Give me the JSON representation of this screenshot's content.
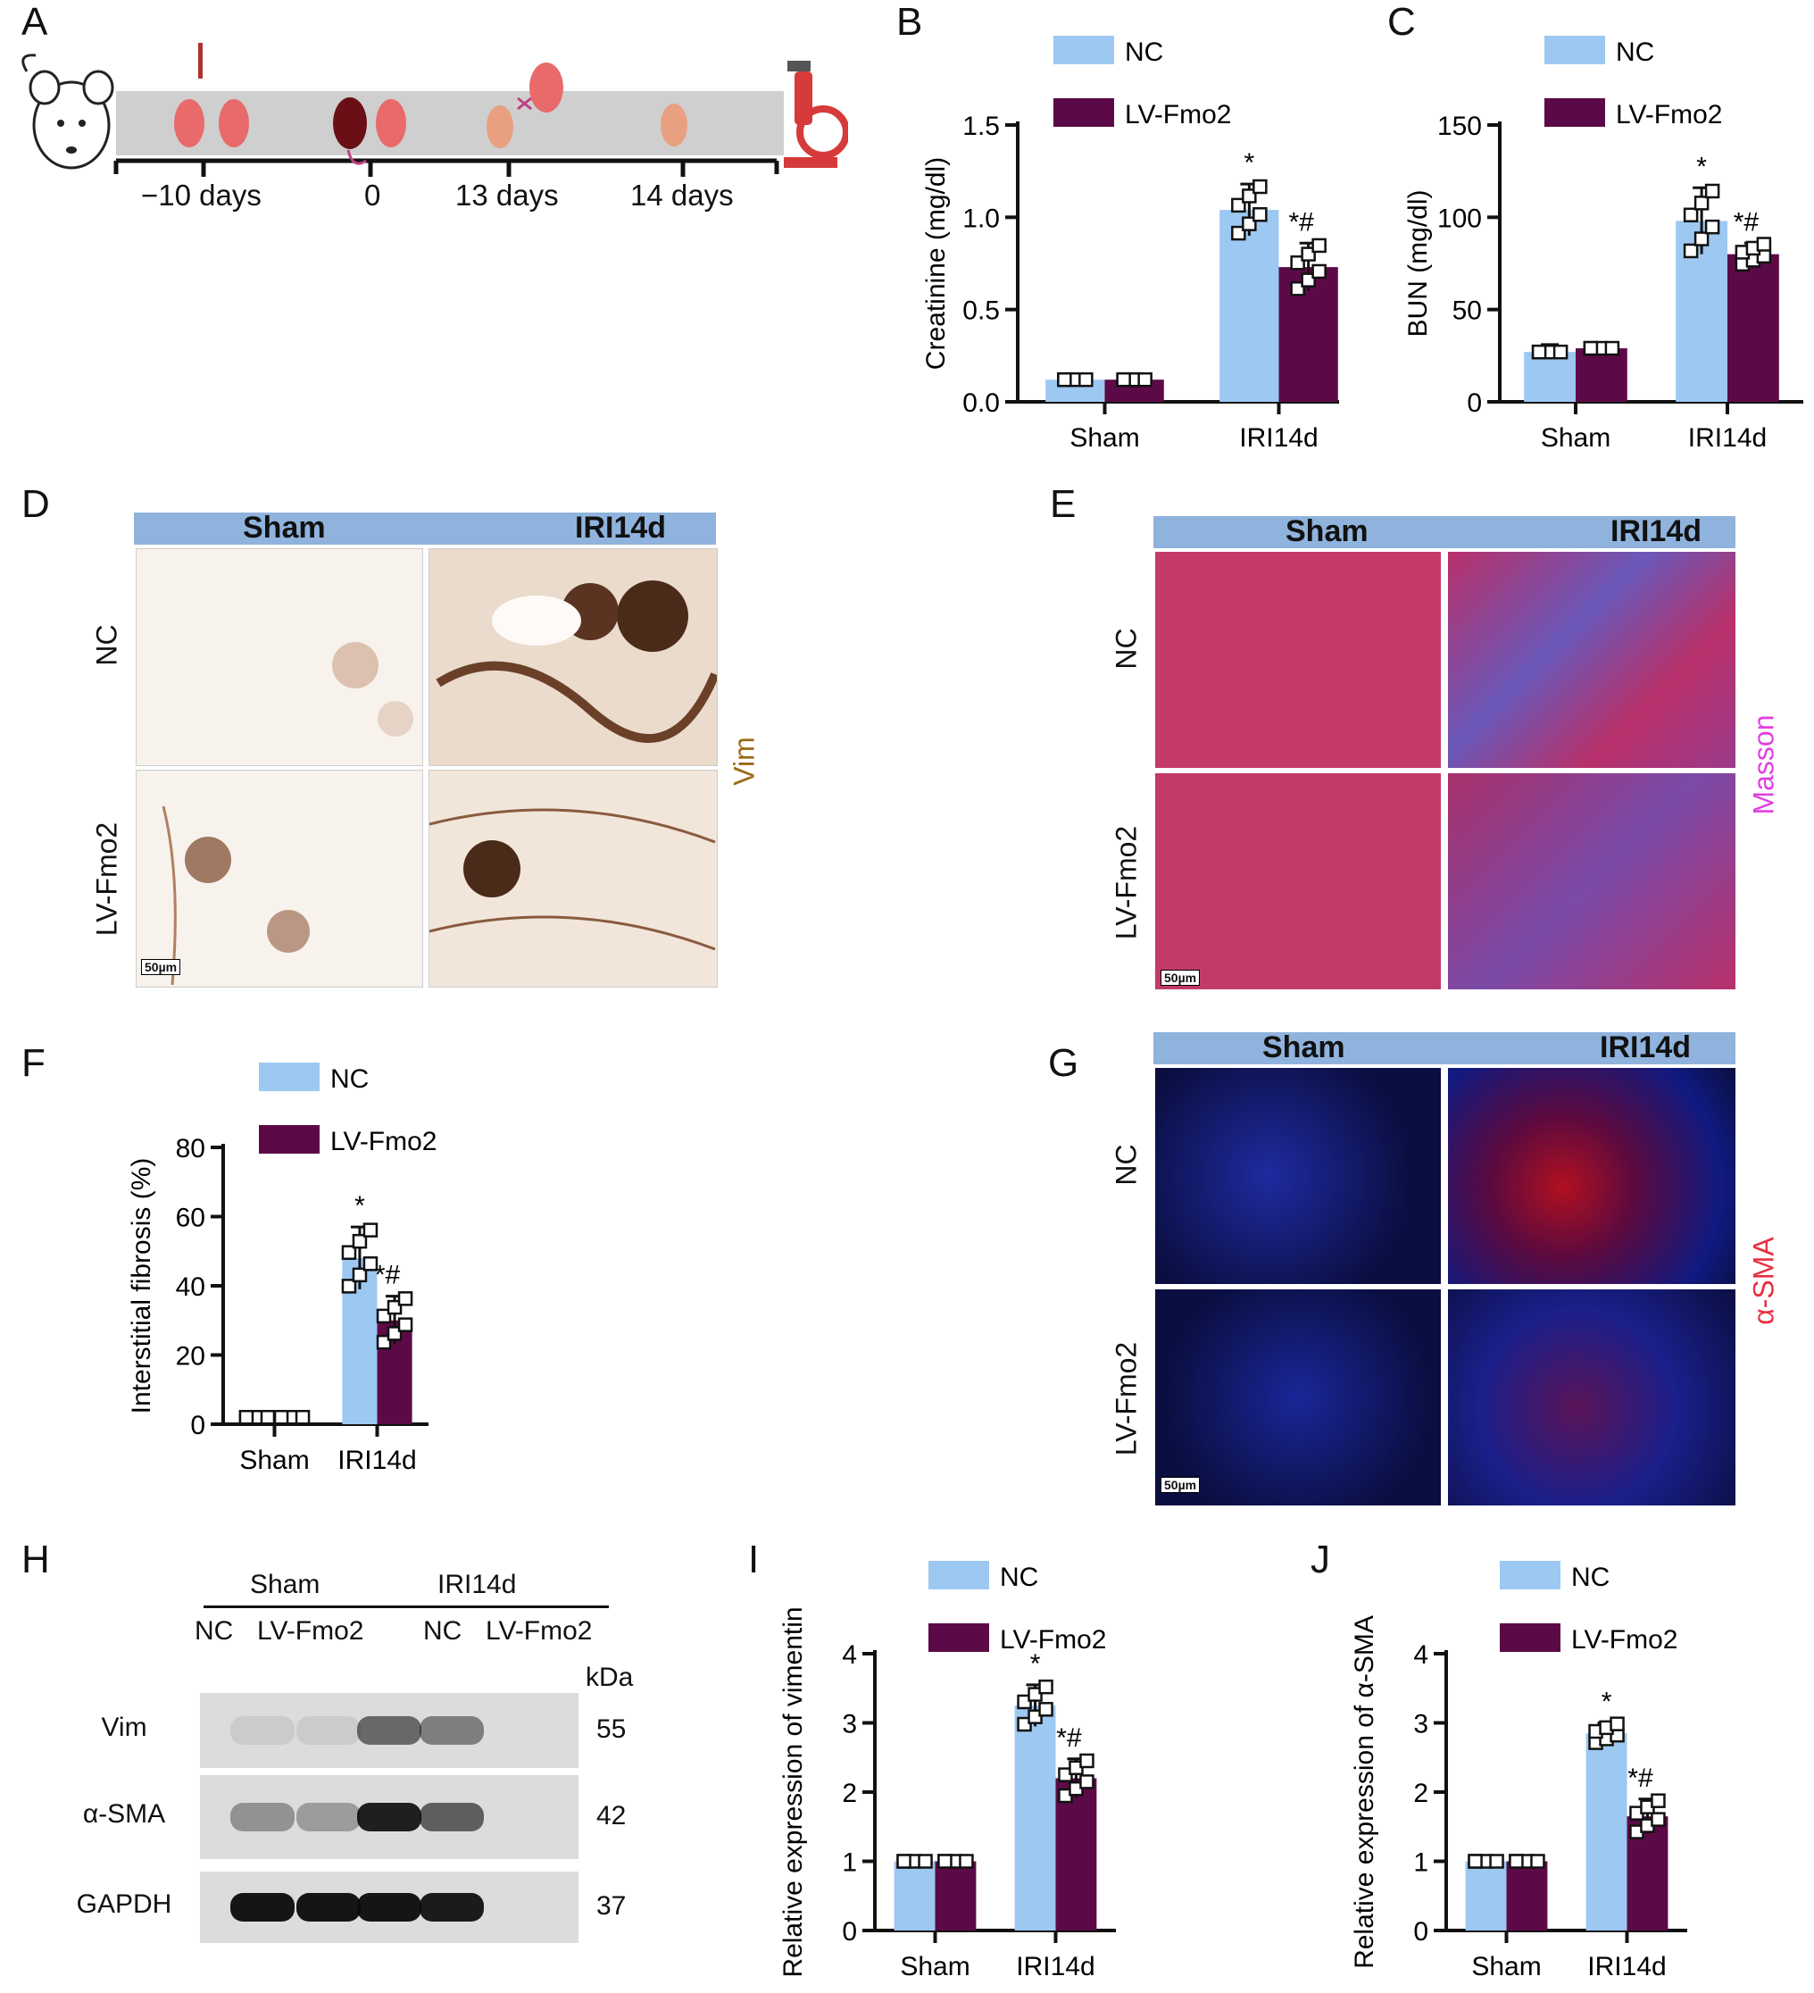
{
  "panel_letters": {
    "A": "A",
    "B": "B",
    "C": "C",
    "D": "D",
    "E": "E",
    "F": "F",
    "G": "G",
    "H": "H",
    "I": "I",
    "J": "J"
  },
  "colors": {
    "nc": "#9cc8f2",
    "lv": "#5c0a47",
    "header_bar": "#8fb3dd",
    "kidney": "#e86a6a",
    "vim_text": "#9a6a14",
    "masson_text": "#e040e0",
    "sma_text": "#e83040"
  },
  "timeline": {
    "labels": [
      "−10 days",
      "0",
      "13 days",
      "14 days"
    ],
    "icons": [
      "mouse-icon",
      "kidney-pair-icon",
      "injured-kidney-icon",
      "nephrectomy-icon",
      "single-kidney-icon",
      "microscope-icon"
    ]
  },
  "legend": {
    "nc": "NC",
    "lv": "LV-Fmo2"
  },
  "stars": {
    "sig": "*",
    "sig2": "#"
  },
  "histology": {
    "D": {
      "col1": "Sham",
      "col2": "IRI14d",
      "row1": "NC",
      "row2": "LV-Fmo2",
      "stain": "Vim",
      "scale": "50µm"
    },
    "E": {
      "col1": "Sham",
      "col2": "IRI14d",
      "row1": "NC",
      "row2": "LV-Fmo2",
      "stain": "Masson",
      "scale": "50µm"
    },
    "G": {
      "col1": "Sham",
      "col2": "IRI14d",
      "row1": "NC",
      "row2": "LV-Fmo2",
      "stain": "α-SMA",
      "scale": "50µm"
    }
  },
  "western": {
    "groups": [
      "Sham",
      "IRI14d"
    ],
    "lanes": [
      "NC",
      "LV-Fmo2",
      "NC",
      "LV-Fmo2"
    ],
    "kda_label": "kDa",
    "bands": [
      {
        "name": "Vim",
        "kda": "55",
        "intensity": [
          0.08,
          0.08,
          0.55,
          0.45
        ]
      },
      {
        "name": "α-SMA",
        "kda": "42",
        "intensity": [
          0.35,
          0.3,
          0.9,
          0.6
        ]
      },
      {
        "name": "GAPDH",
        "kda": "37",
        "intensity": [
          0.95,
          0.95,
          0.95,
          0.92
        ]
      }
    ]
  },
  "chart_data": [
    {
      "panel": "B",
      "type": "bar",
      "categories": [
        "Sham",
        "IRI14d"
      ],
      "ylabel": "Creatinine (mg/dl)",
      "ylim": [
        0,
        1.5
      ],
      "yticks": [
        "0.0",
        "0.5",
        "1.0",
        "1.5"
      ],
      "series": [
        {
          "name": "NC",
          "values": [
            0.12,
            1.04
          ],
          "errors": [
            0.03,
            0.14
          ]
        },
        {
          "name": "LV-Fmo2",
          "values": [
            0.12,
            0.73
          ],
          "errors": [
            0.02,
            0.13
          ]
        }
      ],
      "annotations": [
        {
          "category": "IRI14d",
          "series": "NC",
          "text": "*"
        },
        {
          "category": "IRI14d",
          "series": "LV-Fmo2",
          "text": "*#"
        }
      ]
    },
    {
      "panel": "C",
      "type": "bar",
      "categories": [
        "Sham",
        "IRI14d"
      ],
      "ylabel": "BUN (mg/dl)",
      "ylim": [
        0,
        150
      ],
      "yticks": [
        "0",
        "50",
        "100",
        "150"
      ],
      "series": [
        {
          "name": "NC",
          "values": [
            27,
            98
          ],
          "errors": [
            4,
            18
          ]
        },
        {
          "name": "LV-Fmo2",
          "values": [
            29,
            80
          ],
          "errors": [
            3,
            6
          ]
        }
      ],
      "annotations": [
        {
          "category": "IRI14d",
          "series": "NC",
          "text": "*"
        },
        {
          "category": "IRI14d",
          "series": "LV-Fmo2",
          "text": "*#"
        }
      ]
    },
    {
      "panel": "F",
      "type": "bar",
      "categories": [
        "Sham",
        "IRI14d"
      ],
      "ylabel": "Interstitial fibrosis (%)",
      "ylim": [
        0,
        80
      ],
      "yticks": [
        "0",
        "20",
        "40",
        "60",
        "80"
      ],
      "series": [
        {
          "name": "NC",
          "values": [
            2,
            48
          ],
          "errors": [
            1,
            9
          ]
        },
        {
          "name": "LV-Fmo2",
          "values": [
            2,
            30
          ],
          "errors": [
            1,
            7
          ]
        }
      ],
      "annotations": [
        {
          "category": "IRI14d",
          "series": "NC",
          "text": "*"
        },
        {
          "category": "IRI14d",
          "series": "LV-Fmo2",
          "text": "*#"
        }
      ]
    },
    {
      "panel": "I",
      "type": "bar",
      "categories": [
        "Sham",
        "IRI14d"
      ],
      "ylabel": "Relative expression of vimentin",
      "ylim": [
        0,
        4
      ],
      "yticks": [
        "0",
        "1",
        "2",
        "3",
        "4"
      ],
      "series": [
        {
          "name": "NC",
          "values": [
            1.0,
            3.25
          ],
          "errors": [
            0.03,
            0.3
          ]
        },
        {
          "name": "LV-Fmo2",
          "values": [
            1.0,
            2.2
          ],
          "errors": [
            0.03,
            0.28
          ]
        }
      ],
      "annotations": [
        {
          "category": "IRI14d",
          "series": "NC",
          "text": "*"
        },
        {
          "category": "IRI14d",
          "series": "LV-Fmo2",
          "text": "*#"
        }
      ]
    },
    {
      "panel": "J",
      "type": "bar",
      "categories": [
        "Sham",
        "IRI14d"
      ],
      "ylabel": "Relative expression of α-SMA",
      "ylim": [
        0,
        4
      ],
      "yticks": [
        "0",
        "1",
        "2",
        "3",
        "4"
      ],
      "series": [
        {
          "name": "NC",
          "values": [
            1.0,
            2.85
          ],
          "errors": [
            0.03,
            0.15
          ]
        },
        {
          "name": "LV-Fmo2",
          "values": [
            1.0,
            1.65
          ],
          "errors": [
            0.03,
            0.25
          ]
        }
      ],
      "annotations": [
        {
          "category": "IRI14d",
          "series": "NC",
          "text": "*"
        },
        {
          "category": "IRI14d",
          "series": "LV-Fmo2",
          "text": "*#"
        }
      ]
    }
  ]
}
